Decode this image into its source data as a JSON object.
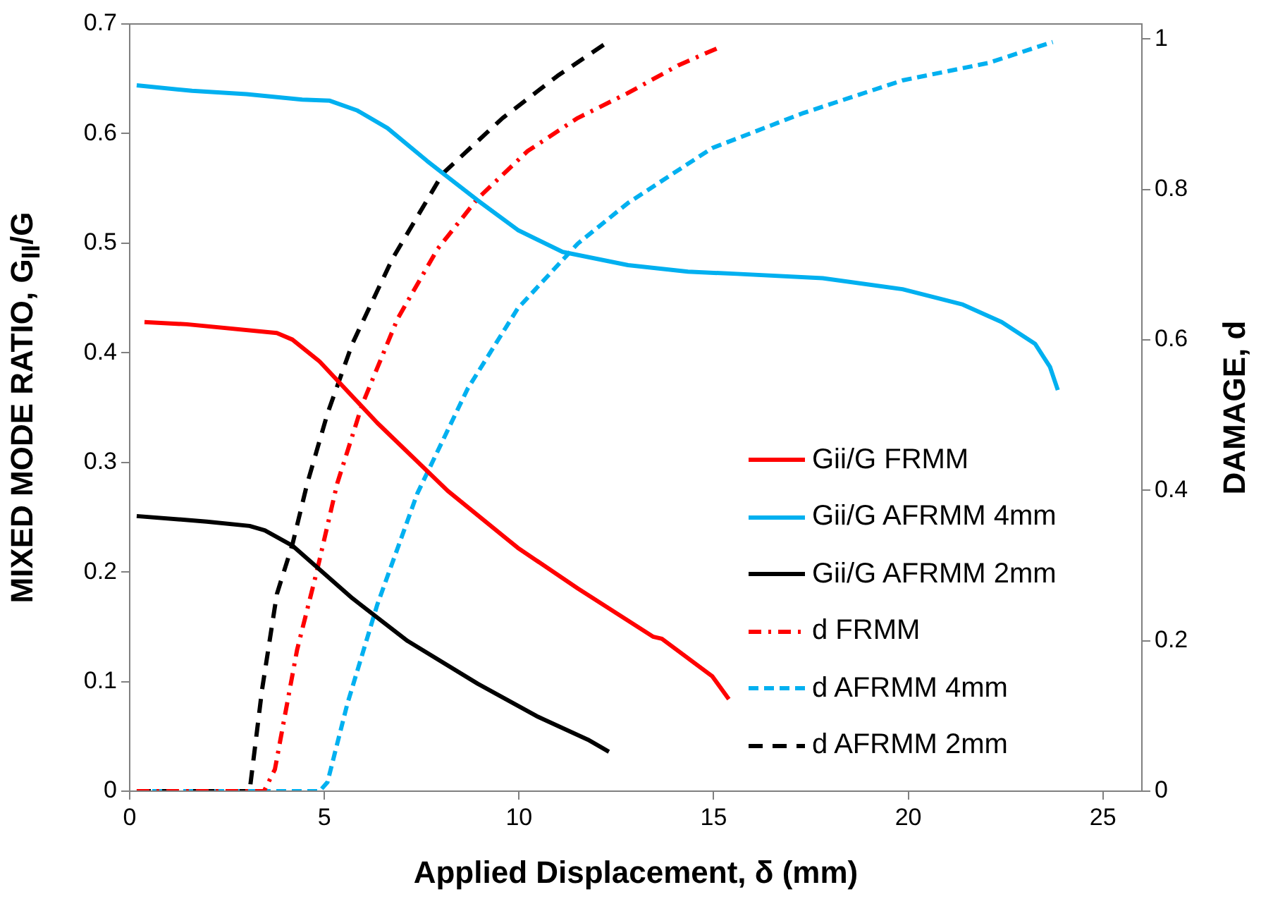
{
  "chart_data": {
    "type": "line",
    "xlabel": "Applied Displacement, δ (mm)",
    "ylabel": "MIXED MODE RATIO, G$_{II}$/G",
    "y2label": "DAMAGE, d",
    "xlim": [
      0,
      26
    ],
    "xticks": [
      0,
      5,
      10,
      15,
      20,
      25
    ],
    "ylim": [
      0,
      0.7
    ],
    "yticks": [
      0,
      0.1,
      0.2,
      0.3,
      0.4,
      0.5,
      0.6,
      0.7
    ],
    "y2lim": [
      0,
      1.02
    ],
    "y2ticks": [
      0,
      0.2,
      0.4,
      0.6,
      0.8,
      1
    ],
    "grid": false,
    "legend": "right",
    "marker": "none",
    "series": [
      {
        "name": "Gii/G FRMM",
        "color": "#ff0000",
        "line_style": "solid",
        "x": [
          0.38,
          1.47,
          3.78,
          4.18,
          4.88,
          6.36,
          8.17,
          9.97,
          11.51,
          13.44,
          13.67,
          14.96,
          15.39
        ],
        "values": [
          0.428,
          0.426,
          0.418,
          0.412,
          0.392,
          0.336,
          0.274,
          0.222,
          0.185,
          0.141,
          0.139,
          0.105,
          0.084
        ]
      },
      {
        "name": "Gii/G AFRMM 4mm",
        "color": "#00b0f0",
        "line_style": "solid",
        "x": [
          0.18,
          1.6,
          3.0,
          4.43,
          5.14,
          5.85,
          6.62,
          7.64,
          8.94,
          9.97,
          11.12,
          12.8,
          14.34,
          15.6,
          17.8,
          19.85,
          21.4,
          22.4,
          23.26,
          23.64,
          23.84
        ],
        "values": [
          0.644,
          0.639,
          0.636,
          0.631,
          0.63,
          0.621,
          0.605,
          0.575,
          0.539,
          0.512,
          0.492,
          0.48,
          0.474,
          0.472,
          0.468,
          0.458,
          0.444,
          0.428,
          0.408,
          0.387,
          0.366
        ]
      },
      {
        "name": "Gii/G AFRMM 2mm",
        "color": "#000000",
        "line_style": "solid",
        "x": [
          0.18,
          1.98,
          3.08,
          3.47,
          4.18,
          5.72,
          7.14,
          8.94,
          10.48,
          11.77,
          12.31
        ],
        "values": [
          0.251,
          0.246,
          0.242,
          0.238,
          0.224,
          0.176,
          0.137,
          0.098,
          0.068,
          0.047,
          0.036
        ]
      },
      {
        "name": "d FRMM",
        "color": "#ff0000",
        "line_style": "dashdot",
        "axis": "y2",
        "x": [
          0.18,
          3.45,
          3.73,
          4.3,
          4.82,
          5.33,
          5.98,
          6.88,
          7.91,
          8.94,
          10.22,
          11.51,
          12.79,
          14.09,
          15.15
        ],
        "values": [
          0,
          0,
          0.029,
          0.188,
          0.295,
          0.409,
          0.515,
          0.628,
          0.721,
          0.788,
          0.851,
          0.895,
          0.928,
          0.965,
          0.989
        ]
      },
      {
        "name": "d AFRMM 4mm",
        "color": "#00b0f0",
        "line_style": "dashed",
        "axis": "y2",
        "x": [
          0.18,
          4.88,
          5.08,
          5.59,
          6.36,
          7.39,
          8.68,
          9.97,
          11.51,
          12.8,
          14.96,
          17.27,
          19.85,
          22.04,
          23.71
        ],
        "values": [
          0,
          0,
          0.012,
          0.116,
          0.248,
          0.396,
          0.535,
          0.642,
          0.728,
          0.782,
          0.855,
          0.901,
          0.945,
          0.968,
          0.996
        ]
      },
      {
        "name": "d AFRMM 2mm",
        "color": "#000000",
        "line_style": "longdash",
        "axis": "y2",
        "x": [
          0.18,
          3.08,
          3.4,
          3.78,
          4.18,
          4.56,
          5.08,
          5.72,
          6.75,
          8.04,
          9.58,
          10.99,
          12.28
        ],
        "values": [
          0,
          0,
          0.135,
          0.262,
          0.328,
          0.409,
          0.502,
          0.595,
          0.708,
          0.821,
          0.895,
          0.951,
          0.996
        ]
      }
    ]
  }
}
